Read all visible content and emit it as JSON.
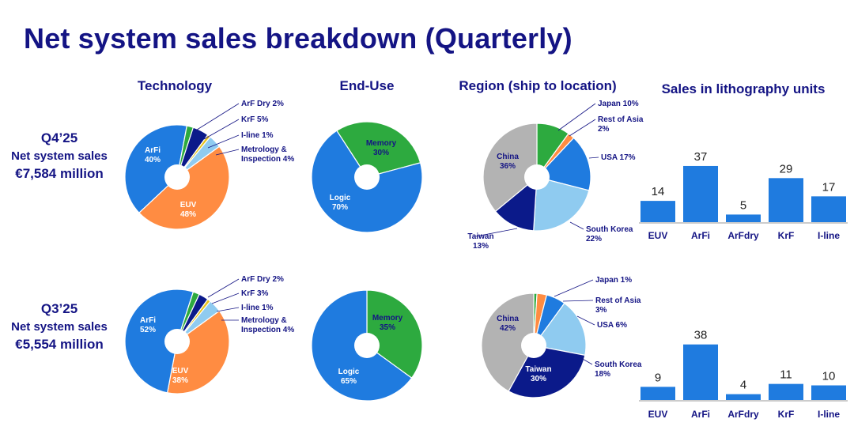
{
  "page": {
    "title": "Net system sales breakdown (Quarterly)",
    "headers": {
      "technology": "Technology",
      "end_use": "End-Use",
      "region": "Region (ship to location)",
      "units": "Sales in lithography units"
    }
  },
  "quarters": [
    {
      "quarter": "Q4’25",
      "label": "Net system sales",
      "value": "€7,584 million"
    },
    {
      "quarter": "Q3’25",
      "label": "Net system sales",
      "value": "€5,554 million"
    }
  ],
  "colors": {
    "EUV": "#FF8C42",
    "ArFi": "#1F7BDF",
    "ArF Dry": "#2DAA3F",
    "KrF": "#0B1A8A",
    "I-line": "#E7C31C",
    "Metrology & Inspection": "#8FCBF0",
    "Logic": "#1F7BDF",
    "Memory": "#2DAA3F",
    "China": "#B3B3B3",
    "Japan": "#2DAA3F",
    "Rest of Asia": "#FF8C42",
    "USA": "#1F7BDF",
    "South Korea": "#8FCBF0",
    "Taiwan": "#0B1A8A",
    "bar": "#1F7BDF",
    "title": "#141484"
  },
  "chart_data": [
    {
      "type": "pie",
      "title": "Technology",
      "quarter": "Q4’25",
      "categories": [
        "EUV",
        "ArFi",
        "ArF Dry",
        "KrF",
        "I-line",
        "Metrology & Inspection"
      ],
      "values": [
        48,
        40,
        2,
        5,
        1,
        4
      ]
    },
    {
      "type": "pie",
      "title": "End-Use",
      "quarter": "Q4’25",
      "categories": [
        "Logic",
        "Memory"
      ],
      "values": [
        70,
        30
      ]
    },
    {
      "type": "pie",
      "title": "Region (ship to location)",
      "quarter": "Q4’25",
      "categories": [
        "Japan",
        "Rest of Asia",
        "USA",
        "South Korea",
        "Taiwan",
        "China"
      ],
      "values": [
        10,
        2,
        17,
        22,
        13,
        36
      ]
    },
    {
      "type": "bar",
      "title": "Sales in lithography units",
      "quarter": "Q4’25",
      "categories": [
        "EUV",
        "ArFi",
        "ArFdry",
        "KrF",
        "I-line"
      ],
      "values": [
        14,
        37,
        5,
        29,
        17
      ]
    },
    {
      "type": "pie",
      "title": "Technology",
      "quarter": "Q3’25",
      "categories": [
        "EUV",
        "ArFi",
        "ArF Dry",
        "KrF",
        "I-line",
        "Metrology & Inspection"
      ],
      "values": [
        38,
        52,
        2,
        3,
        1,
        4
      ]
    },
    {
      "type": "pie",
      "title": "End-Use",
      "quarter": "Q3’25",
      "categories": [
        "Logic",
        "Memory"
      ],
      "values": [
        65,
        35
      ]
    },
    {
      "type": "pie",
      "title": "Region (ship to location)",
      "quarter": "Q3’25",
      "categories": [
        "Japan",
        "Rest of Asia",
        "USA",
        "South Korea",
        "Taiwan",
        "China"
      ],
      "values": [
        1,
        3,
        6,
        18,
        30,
        42
      ]
    },
    {
      "type": "bar",
      "title": "Sales in lithography units",
      "quarter": "Q3’25",
      "categories": [
        "EUV",
        "ArFi",
        "ArFdry",
        "KrF",
        "I-line"
      ],
      "values": [
        9,
        38,
        4,
        11,
        10
      ]
    }
  ]
}
